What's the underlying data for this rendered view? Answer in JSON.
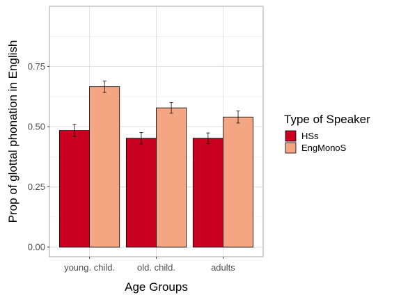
{
  "chart_data": {
    "type": "bar",
    "xlabel": "Age Groups",
    "ylabel": "Prop of glottal phonation in English",
    "categories": [
      "young. child.",
      "old. child.",
      "adults"
    ],
    "series": [
      {
        "name": "HSs",
        "color": "#ca0020",
        "values": [
          0.484,
          0.452,
          0.452
        ],
        "error": [
          0.026,
          0.024,
          0.022
        ]
      },
      {
        "name": "EngMonoS",
        "color": "#f4a582",
        "values": [
          0.666,
          0.578,
          0.54
        ],
        "error": [
          0.024,
          0.022,
          0.025
        ]
      }
    ],
    "ylim": [
      -0.04,
      1.0
    ],
    "yticks": [
      0.0,
      0.25,
      0.5,
      0.75
    ],
    "ytick_labels": [
      "0.00",
      "0.25",
      "0.50",
      "0.75"
    ],
    "grid": true,
    "legend": {
      "title": "Type of Speaker",
      "position": "right"
    }
  }
}
